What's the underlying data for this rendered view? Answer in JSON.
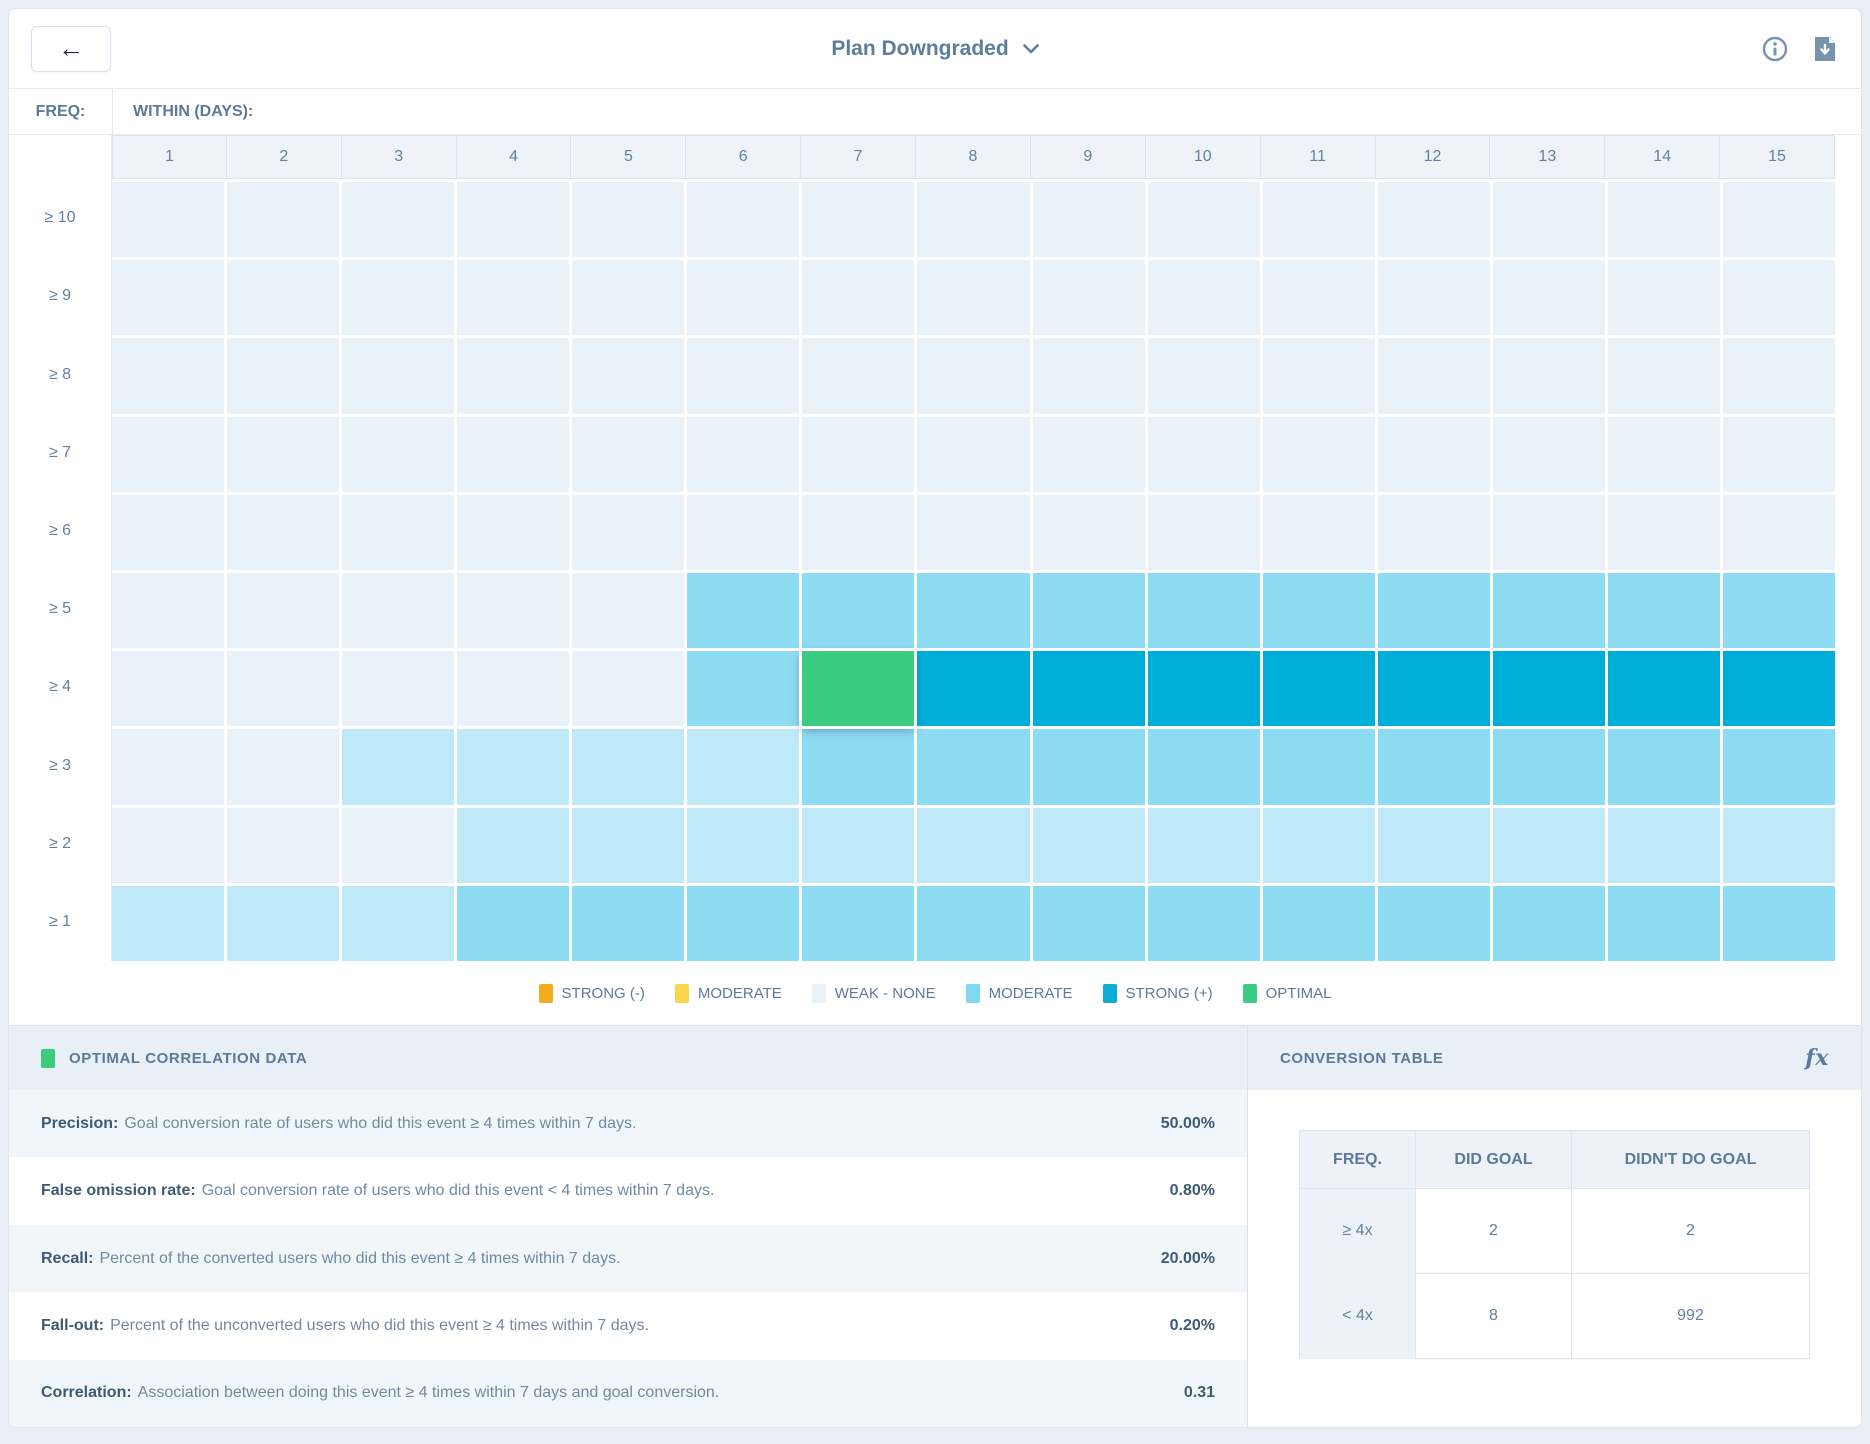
{
  "header": {
    "title": "Plan Downgraded",
    "icons": {
      "back": "back-arrow",
      "dropdown": "chevron-down",
      "info": "info",
      "export": "download-file"
    }
  },
  "heatmap": {
    "freq_label": "FREQ:",
    "within_label": "WITHIN (DAYS):",
    "columns": [
      "1",
      "2",
      "3",
      "4",
      "5",
      "6",
      "7",
      "8",
      "9",
      "10",
      "11",
      "12",
      "13",
      "14",
      "15"
    ],
    "levels": {
      "w": "#e9f1f9",
      "l": "#c0e9f8",
      "m": "#8edcf3",
      "s": "#00afd9",
      "o": "#3bcc81"
    },
    "rows": [
      {
        "label": "≥ 10",
        "cells": [
          "w",
          "w",
          "w",
          "w",
          "w",
          "w",
          "w",
          "w",
          "w",
          "w",
          "w",
          "w",
          "w",
          "w",
          "w"
        ]
      },
      {
        "label": "≥ 9",
        "cells": [
          "w",
          "w",
          "w",
          "w",
          "w",
          "w",
          "w",
          "w",
          "w",
          "w",
          "w",
          "w",
          "w",
          "w",
          "w"
        ]
      },
      {
        "label": "≥ 8",
        "cells": [
          "w",
          "w",
          "w",
          "w",
          "w",
          "w",
          "w",
          "w",
          "w",
          "w",
          "w",
          "w",
          "w",
          "w",
          "w"
        ]
      },
      {
        "label": "≥ 7",
        "cells": [
          "w",
          "w",
          "w",
          "w",
          "w",
          "w",
          "w",
          "w",
          "w",
          "w",
          "w",
          "w",
          "w",
          "w",
          "w"
        ]
      },
      {
        "label": "≥ 6",
        "cells": [
          "w",
          "w",
          "w",
          "w",
          "w",
          "w",
          "w",
          "w",
          "w",
          "w",
          "w",
          "w",
          "w",
          "w",
          "w"
        ]
      },
      {
        "label": "≥ 5",
        "cells": [
          "w",
          "w",
          "w",
          "w",
          "w",
          "m",
          "m",
          "m",
          "m",
          "m",
          "m",
          "m",
          "m",
          "m",
          "m"
        ]
      },
      {
        "label": "≥ 4",
        "cells": [
          "w",
          "w",
          "w",
          "w",
          "w",
          "m",
          "o",
          "s",
          "s",
          "s",
          "s",
          "s",
          "s",
          "s",
          "s"
        ]
      },
      {
        "label": "≥ 3",
        "cells": [
          "w",
          "w",
          "l",
          "l",
          "l",
          "l",
          "m",
          "m",
          "m",
          "m",
          "m",
          "m",
          "m",
          "m",
          "m"
        ]
      },
      {
        "label": "≥ 2",
        "cells": [
          "w",
          "w",
          "w",
          "l",
          "l",
          "l",
          "l",
          "l",
          "l",
          "l",
          "l",
          "l",
          "l",
          "l",
          "l"
        ]
      },
      {
        "label": "≥ 1",
        "cells": [
          "l",
          "l",
          "l",
          "m",
          "m",
          "m",
          "m",
          "m",
          "m",
          "m",
          "m",
          "m",
          "m",
          "m",
          "m"
        ]
      }
    ],
    "selected_cell": {
      "row_label": "≥ 4",
      "column": "7",
      "level": "o"
    }
  },
  "legend": {
    "items": [
      {
        "label": "STRONG (-)",
        "color": "#f0ab1f",
        "textured": false
      },
      {
        "label": "MODERATE",
        "color": "#f8d74a",
        "textured": false
      },
      {
        "label": "WEAK - NONE",
        "color": "#e9f1f9",
        "textured": false
      },
      {
        "label": "MODERATE",
        "color": "#7fd7f0",
        "textured": true
      },
      {
        "label": "STRONG (+)",
        "color": "#09aed8",
        "textured": false
      },
      {
        "label": "OPTIMAL",
        "color": "#3bcc81",
        "textured": false
      }
    ]
  },
  "optimal_panel": {
    "title": "OPTIMAL CORRELATION DATA",
    "swatch_color": "#3bcc81",
    "metrics": [
      {
        "name": "Precision:",
        "description": "Goal conversion rate of users who did this event ≥ 4 times within 7 days.",
        "value": "50.00%"
      },
      {
        "name": "False omission rate:",
        "description": "Goal conversion rate of users who did this event < 4 times within 7 days.",
        "value": "0.80%"
      },
      {
        "name": "Recall:",
        "description": "Percent of the converted users who did this event ≥ 4 times within 7 days.",
        "value": "20.00%"
      },
      {
        "name": "Fall-out:",
        "description": "Percent of the unconverted users who did this event ≥ 4 times within 7 days.",
        "value": "0.20%"
      },
      {
        "name": "Correlation:",
        "description": "Association between doing this event ≥ 4 times within 7 days and goal conversion.",
        "value": "0.31"
      }
    ]
  },
  "conversion_panel": {
    "title": "CONVERSION TABLE",
    "fx_label": "fx",
    "table": {
      "headers": [
        "FREQ.",
        "DID GOAL",
        "DIDN'T DO GOAL"
      ],
      "rows": [
        {
          "freq": "≥ 4x",
          "did_goal": "2",
          "didnt_do_goal": "2"
        },
        {
          "freq": "< 4x",
          "did_goal": "8",
          "didnt_do_goal": "992"
        }
      ]
    }
  }
}
